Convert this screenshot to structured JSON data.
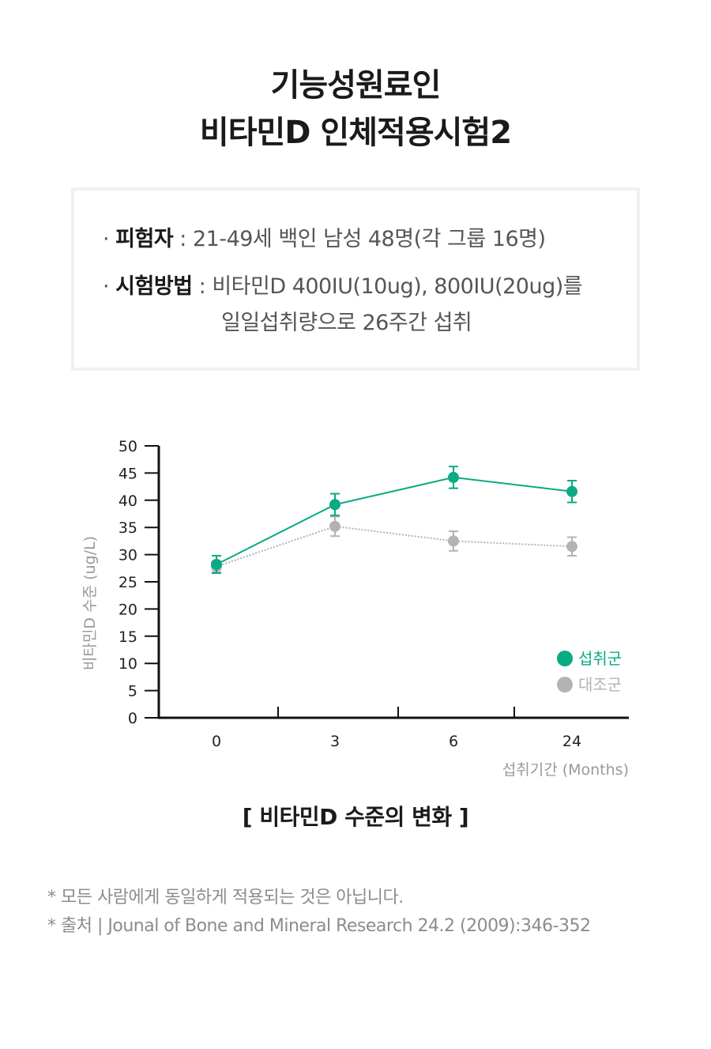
{
  "header": {
    "line1": "기능성원료인",
    "line2": "비타민D 인체적용시험2"
  },
  "info": {
    "subjects_bullet": "· ",
    "subjects_label": "피험자",
    "subjects_sep": " : ",
    "subjects_value": "21-49세 백인 남성 48명(각 그룹 16명)",
    "method_bullet": "· ",
    "method_label": "시험방법",
    "method_sep": " : ",
    "method_value_line1": "비타민D 400IU(10ug), 800IU(20ug)를",
    "method_value_line2": "일일섭취량으로 26주간 섭취"
  },
  "chart_data": {
    "type": "line",
    "title": "[ 비타민D 수준의 변화 ]",
    "xlabel": "섭취기간 (Months)",
    "ylabel": "비타민D 수준 (ug/L)",
    "categories": [
      "0",
      "3",
      "6",
      "24"
    ],
    "ylim": [
      0,
      50
    ],
    "yticks": [
      "0",
      "5",
      "10",
      "15",
      "20",
      "25",
      "30",
      "35",
      "40",
      "45",
      "50"
    ],
    "grid": false,
    "legend_position": "bottom-right",
    "series": [
      {
        "name": "섭취군",
        "color": "#0aaa85",
        "line_style": "solid",
        "values": [
          28.2,
          39.2,
          44.2,
          41.6
        ],
        "error": [
          1.6,
          2.0,
          2.0,
          2.0
        ]
      },
      {
        "name": "대조군",
        "color": "#b3b3b3",
        "line_style": "dotted",
        "values": [
          27.8,
          35.2,
          32.5,
          31.5
        ],
        "error": [
          1.0,
          1.8,
          1.8,
          1.7
        ]
      }
    ]
  },
  "notes": {
    "line1": "* 모든 사람에게 동일하게 적용되는 것은 아닙니다.",
    "line2": "* 출처 | Jounal of Bone and Mineral Research 24.2 (2009):346-352"
  }
}
